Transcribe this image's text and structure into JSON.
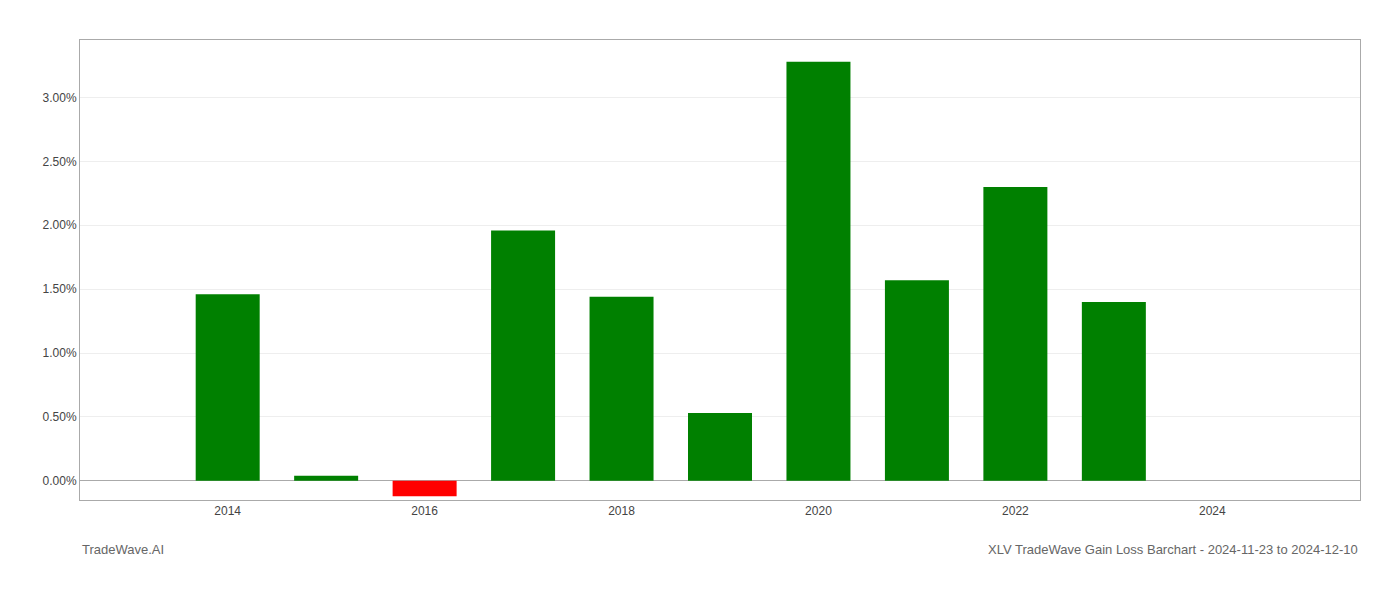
{
  "chart_data": {
    "type": "bar",
    "title": "XLV TradeWave Gain Loss Barchart - 2024-11-23 to 2024-12-10",
    "annotations": [
      "TradeWave.AI"
    ],
    "x": [
      2014,
      2015,
      2016,
      2017,
      2018,
      2019,
      2020,
      2021,
      2022,
      2023
    ],
    "values": [
      0.0146,
      0.0004,
      -0.0012,
      0.0196,
      0.0144,
      0.0053,
      0.0328,
      0.0157,
      0.023,
      0.014
    ],
    "colors": [
      "#008000",
      "#008000",
      "#ff0000",
      "#008000",
      "#008000",
      "#008000",
      "#008000",
      "#008000",
      "#008000",
      "#008000"
    ],
    "xlim": [
      2012.5,
      2025.5
    ],
    "xticks": [
      2014,
      2016,
      2018,
      2020,
      2022,
      2024
    ],
    "ylim": [
      -0.0015,
      0.0345
    ],
    "yticks": [
      {
        "value": 0.0,
        "label": "0.00%"
      },
      {
        "value": 0.005,
        "label": "0.50%"
      },
      {
        "value": 0.01,
        "label": "1.00%"
      },
      {
        "value": 0.015,
        "label": "1.50%"
      },
      {
        "value": 0.02,
        "label": "2.00%"
      },
      {
        "value": 0.025,
        "label": "2.50%"
      },
      {
        "value": 0.03,
        "label": "3.00%"
      }
    ],
    "grid": true
  }
}
